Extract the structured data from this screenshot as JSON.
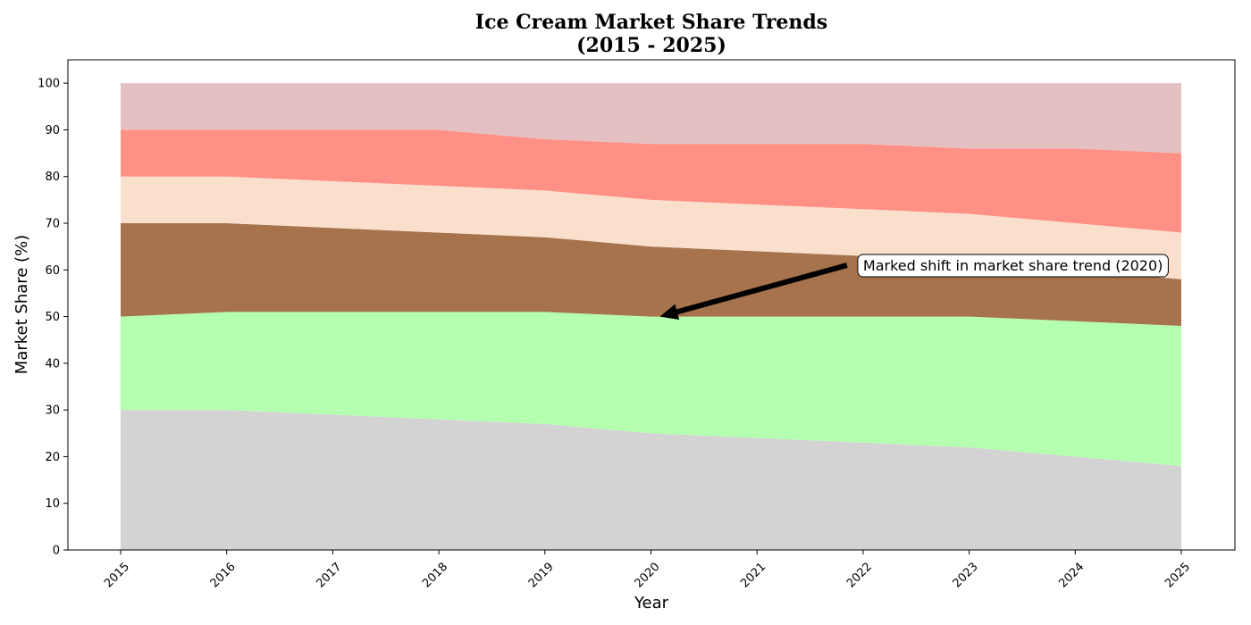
{
  "chart_data": {
    "type": "area",
    "stacked": true,
    "title_line1": "Ice Cream Market Share Trends",
    "title_line2": "(2015 - 2025)",
    "xlabel": "Year",
    "ylabel": "Market Share (%)",
    "x": [
      "2015",
      "2016",
      "2017",
      "2018",
      "2019",
      "2020",
      "2021",
      "2022",
      "2023",
      "2024",
      "2025"
    ],
    "ylim": [
      0,
      105
    ],
    "yticks": [
      0,
      10,
      20,
      30,
      40,
      50,
      60,
      70,
      80,
      90,
      100
    ],
    "grid": false,
    "legend": "none",
    "series": [
      {
        "color": "#d3d3d3",
        "values": [
          30,
          30,
          29,
          28,
          27,
          25,
          24,
          23,
          22,
          20,
          18
        ]
      },
      {
        "color": "#b4ffb0",
        "values": [
          20,
          21,
          22,
          23,
          24,
          25,
          26,
          27,
          28,
          29,
          30
        ]
      },
      {
        "color": "#a6734d",
        "values": [
          20,
          19,
          18,
          17,
          16,
          15,
          14,
          13,
          12,
          11,
          10
        ]
      },
      {
        "color": "#fae0cc",
        "values": [
          10,
          10,
          10,
          10,
          10,
          10,
          10,
          10,
          10,
          10,
          10
        ]
      },
      {
        "color": "#ff9086",
        "values": [
          10,
          10,
          11,
          12,
          11,
          12,
          13,
          14,
          14,
          16,
          17
        ]
      },
      {
        "color": "#e4c0c2",
        "values": [
          10,
          10,
          10,
          10,
          12,
          13,
          13,
          13,
          14,
          14,
          15
        ]
      }
    ],
    "annotation": {
      "text": "Marked shift in market share trend (2020)",
      "target_x": "2020",
      "target_y": 50,
      "text_x": "2022",
      "text_y": 61
    }
  }
}
